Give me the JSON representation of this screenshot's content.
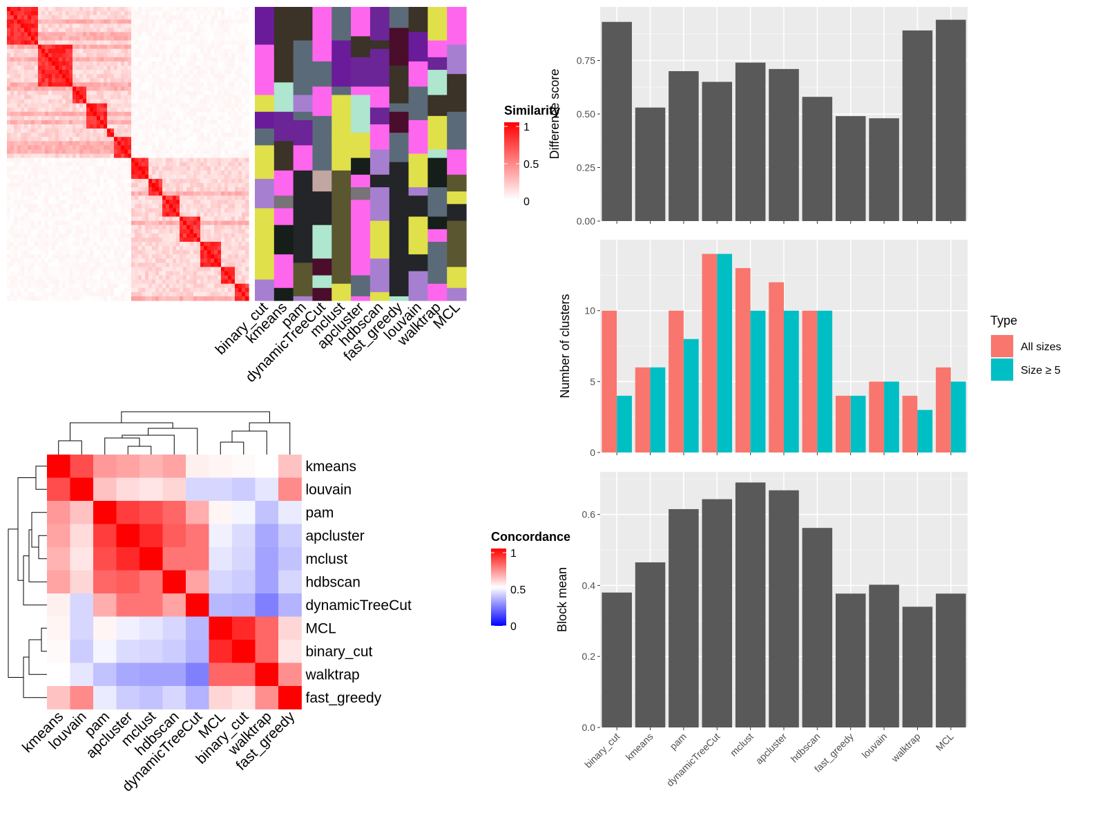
{
  "chart_data": [
    {
      "id": "similarity-heatmap",
      "type": "heatmap",
      "title": "",
      "legend": {
        "title": "Similarity",
        "ticks": [
          "1",
          "0.5",
          "0"
        ],
        "low_color": "#ffffff",
        "high_color": "#ff0000",
        "placement": "right"
      },
      "methods": [
        "binary_cut",
        "kmeans",
        "pam",
        "dynamicTreeCut",
        "mclust",
        "apcluster",
        "hdbscan",
        "fast_greedy",
        "louvain",
        "walktrap",
        "MCL"
      ],
      "blocks": [
        0.95,
        0.9,
        0.85,
        0.75,
        0.9,
        0.85,
        0.9,
        0.8,
        0.9,
        0.85,
        0.9
      ]
    },
    {
      "id": "concordance-heatmap",
      "type": "heatmap",
      "title": "",
      "legend": {
        "title": "Concordance",
        "ticks": [
          "1",
          "0.5",
          "0"
        ],
        "low_color": "#0000ff",
        "mid_color": "#ffffff",
        "high_color": "#ff0000",
        "placement": "right"
      },
      "rows": [
        "kmeans",
        "louvain",
        "pam",
        "apcluster",
        "mclust",
        "hdbscan",
        "dynamicTreeCut",
        "MCL",
        "binary_cut",
        "walktrap",
        "fast_greedy"
      ],
      "cols": [
        "kmeans",
        "louvain",
        "pam",
        "apcluster",
        "mclust",
        "hdbscan",
        "dynamicTreeCut",
        "MCL",
        "binary_cut",
        "walktrap",
        "fast_greedy"
      ],
      "values": [
        [
          1.0,
          0.85,
          0.7,
          0.68,
          0.65,
          0.68,
          0.53,
          0.52,
          0.51,
          0.5,
          0.62
        ],
        [
          0.85,
          1.0,
          0.62,
          0.57,
          0.55,
          0.58,
          0.42,
          0.42,
          0.4,
          0.45,
          0.73
        ],
        [
          0.7,
          0.62,
          1.0,
          0.88,
          0.85,
          0.8,
          0.66,
          0.52,
          0.48,
          0.38,
          0.46
        ],
        [
          0.68,
          0.57,
          0.88,
          1.0,
          0.92,
          0.82,
          0.77,
          0.47,
          0.43,
          0.33,
          0.4
        ],
        [
          0.65,
          0.55,
          0.85,
          0.92,
          1.0,
          0.77,
          0.77,
          0.45,
          0.42,
          0.32,
          0.38
        ],
        [
          0.68,
          0.58,
          0.8,
          0.82,
          0.77,
          1.0,
          0.68,
          0.42,
          0.4,
          0.32,
          0.42
        ],
        [
          0.53,
          0.42,
          0.66,
          0.77,
          0.77,
          0.68,
          1.0,
          0.36,
          0.35,
          0.25,
          0.35
        ],
        [
          0.52,
          0.42,
          0.52,
          0.47,
          0.45,
          0.42,
          0.36,
          1.0,
          0.92,
          0.8,
          0.58
        ],
        [
          0.51,
          0.4,
          0.48,
          0.43,
          0.42,
          0.4,
          0.35,
          0.92,
          1.0,
          0.8,
          0.55
        ],
        [
          0.5,
          0.45,
          0.38,
          0.33,
          0.32,
          0.32,
          0.25,
          0.8,
          0.8,
          1.0,
          0.72
        ],
        [
          0.62,
          0.73,
          0.46,
          0.4,
          0.38,
          0.42,
          0.35,
          0.58,
          0.55,
          0.72,
          1.0
        ]
      ]
    },
    {
      "id": "difference-score",
      "type": "bar",
      "title": "",
      "xlabel": "",
      "ylabel": "Difference score",
      "categories": [
        "binary_cut",
        "kmeans",
        "pam",
        "dynamicTreeCut",
        "mclust",
        "apcluster",
        "hdbscan",
        "fast_greedy",
        "louvain",
        "walktrap",
        "MCL"
      ],
      "values": [
        0.93,
        0.53,
        0.7,
        0.65,
        0.74,
        0.71,
        0.58,
        0.49,
        0.48,
        0.89,
        0.94
      ],
      "ylim": [
        0,
        1.0
      ],
      "yticks": [
        0,
        0.25,
        0.5,
        0.75
      ],
      "ytick_labels": [
        "0.00",
        "0.25",
        "0.50",
        "0.75"
      ],
      "grid": true
    },
    {
      "id": "number-of-clusters",
      "type": "bar",
      "title": "",
      "xlabel": "",
      "ylabel": "Number of clusters",
      "categories": [
        "binary_cut",
        "kmeans",
        "pam",
        "dynamicTreeCut",
        "mclust",
        "apcluster",
        "hdbscan",
        "fast_greedy",
        "louvain",
        "walktrap",
        "MCL"
      ],
      "series": [
        {
          "name": "All sizes",
          "color": "#F8766D",
          "values": [
            10,
            6,
            10,
            14,
            13,
            12,
            10,
            4,
            5,
            4,
            6
          ]
        },
        {
          "name": "Size ≥ 5",
          "color": "#00BFC4",
          "values": [
            4,
            6,
            8,
            14,
            10,
            10,
            10,
            4,
            5,
            3,
            5
          ]
        }
      ],
      "legend": {
        "title": "Type",
        "placement": "right"
      },
      "ylim": [
        0,
        15
      ],
      "yticks": [
        0,
        5,
        10
      ],
      "ytick_labels": [
        "0",
        "5",
        "10"
      ],
      "grid": true
    },
    {
      "id": "block-mean",
      "type": "bar",
      "title": "",
      "xlabel": "",
      "ylabel": "Block mean",
      "categories": [
        "binary_cut",
        "kmeans",
        "pam",
        "dynamicTreeCut",
        "mclust",
        "apcluster",
        "hdbscan",
        "fast_greedy",
        "louvain",
        "walktrap",
        "MCL"
      ],
      "values": [
        0.38,
        0.465,
        0.615,
        0.643,
        0.69,
        0.668,
        0.562,
        0.377,
        0.402,
        0.34,
        0.377
      ],
      "ylim": [
        0,
        0.72
      ],
      "yticks": [
        0,
        0.2,
        0.4,
        0.6
      ],
      "ytick_labels": [
        "0.0",
        "0.2",
        "0.4",
        "0.6"
      ],
      "grid": true
    }
  ]
}
